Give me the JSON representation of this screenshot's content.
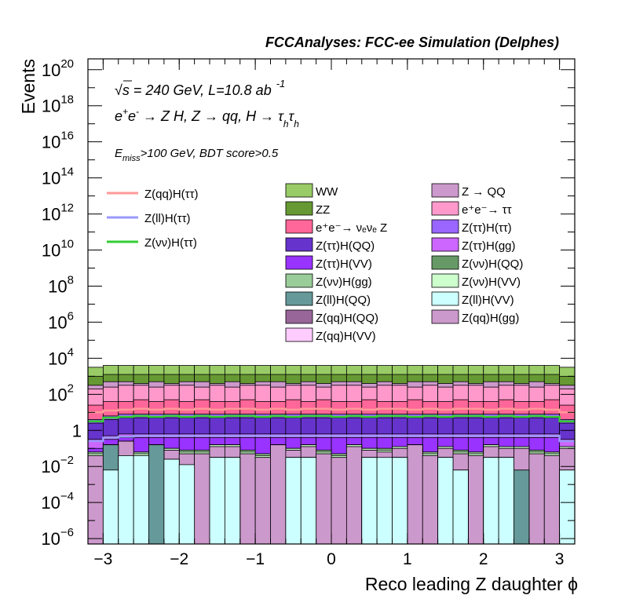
{
  "chart_data": {
    "type": "bar",
    "title": "FCCAnalyses: FCC-ee Simulation (Delphes)",
    "xlabel": "Reco leading Z daughter ϕ",
    "ylabel": "Events",
    "xlim": [
      -3.2,
      3.2
    ],
    "ylim_log10": [
      -6.3,
      20.6
    ],
    "log_y": true,
    "stacked": true,
    "annotations": [
      {
        "parts": [
          "√",
          "s",
          " = 240 GeV, L=10.8 ab",
          "-1"
        ]
      },
      {
        "parts": [
          "e",
          "+",
          "e",
          "-",
          " → Z H, Z  → qq, H  → τ",
          "h",
          "τ",
          "h"
        ]
      },
      {
        "parts": [
          "E",
          "miss",
          ">100 GeV, BDT score>0.5"
        ]
      }
    ],
    "x_ticks": [
      {
        "value": -3,
        "label": "−3"
      },
      {
        "value": -2,
        "label": "−2"
      },
      {
        "value": -1,
        "label": "−1"
      },
      {
        "value": 0,
        "label": "0"
      },
      {
        "value": 1,
        "label": "1"
      },
      {
        "value": 2,
        "label": "2"
      },
      {
        "value": 3,
        "label": "3"
      }
    ],
    "y_ticks": [
      {
        "exp": -6,
        "base": "10",
        "sup": "−6"
      },
      {
        "exp": -4,
        "base": "10",
        "sup": "−4"
      },
      {
        "exp": -2,
        "base": "10",
        "sup": "−2"
      },
      {
        "exp": 0,
        "base": "1",
        "sup": ""
      },
      {
        "exp": 2,
        "base": "10",
        "sup": "2"
      },
      {
        "exp": 4,
        "base": "10",
        "sup": "4"
      },
      {
        "exp": 6,
        "base": "10",
        "sup": "6"
      },
      {
        "exp": 8,
        "base": "10",
        "sup": "8"
      },
      {
        "exp": 10,
        "base": "10",
        "sup": "10"
      },
      {
        "exp": 12,
        "base": "10",
        "sup": "12"
      },
      {
        "exp": 14,
        "base": "10",
        "sup": "14"
      },
      {
        "exp": 16,
        "base": "10",
        "sup": "16"
      },
      {
        "exp": 18,
        "base": "10",
        "sup": "18"
      },
      {
        "exp": 20,
        "base": "10",
        "sup": "20"
      }
    ],
    "bin_edges": [
      -3.2,
      -3.0,
      -2.8,
      -2.6,
      -2.4,
      -2.2,
      -2.0,
      -1.8,
      -1.6,
      -1.4,
      -1.2,
      -1.0,
      -0.8,
      -0.6,
      -0.4,
      -0.2,
      0.0,
      0.2,
      0.4,
      0.6,
      0.8,
      1.0,
      1.2,
      1.4,
      1.6,
      1.8,
      2.0,
      2.2,
      2.4,
      2.6,
      2.8,
      3.0,
      3.2
    ],
    "stack_series": [
      {
        "name": "Z(ll)H(VV)",
        "color": "#ccffff",
        "log10_top": [
          -6.3,
          -2.2,
          -1.4,
          -1.4,
          -6.3,
          -1.6,
          -1.9,
          -6.3,
          -1.5,
          -1.5,
          -6.3,
          -6.3,
          -6.3,
          -1.5,
          -1.5,
          -6.3,
          -6.3,
          -6.3,
          -1.5,
          -1.5,
          -1.5,
          -6.3,
          -6.3,
          -1.5,
          -2.2,
          -6.3,
          -1.5,
          -1.5,
          -6.3,
          -6.3,
          -6.3,
          -2.2
        ]
      },
      {
        "name": "Z(ll)H(QQ)",
        "color": "#669999",
        "log10_top": [
          -6.3,
          -0.8,
          -1.4,
          -1.4,
          -0.8,
          -1.6,
          -1.9,
          -6.3,
          -1.5,
          -1.5,
          -6.3,
          -6.3,
          -6.3,
          -1.5,
          -1.5,
          -6.3,
          -6.3,
          -6.3,
          -1.5,
          -2.2,
          -1.5,
          -6.3,
          -6.3,
          -1.5,
          -2.2,
          -6.3,
          -1.5,
          -1.5,
          -2.2,
          -6.3,
          -6.3,
          -2.2
        ]
      },
      {
        "name": "Z(qq)H(VV)",
        "color": "#ffccff",
        "log10_top": [
          -6.3,
          -0.8,
          -1.4,
          -1.4,
          -0.8,
          -1.6,
          -1.9,
          -6.3,
          -1.5,
          -1.5,
          -6.3,
          -6.3,
          -6.3,
          -1.5,
          -1.5,
          -6.3,
          -6.3,
          -6.3,
          -1.5,
          -2.2,
          -1.5,
          -6.3,
          -6.3,
          -1.5,
          -2.2,
          -6.3,
          -1.5,
          -1.5,
          -2.2,
          -6.3,
          -6.3,
          -2.2
        ]
      },
      {
        "name": "Z(qq)H(gg)",
        "color": "#cc99cc",
        "log10_top": [
          -1.4,
          -0.8,
          -0.6,
          -1.4,
          -0.8,
          -1.1,
          -1.3,
          -1.3,
          -0.9,
          -0.9,
          -1.3,
          -1.5,
          -0.8,
          -1.1,
          -0.9,
          -1.3,
          -1.5,
          -0.9,
          -1.1,
          -1.2,
          -1.0,
          -0.8,
          -1.4,
          -1.0,
          -1.3,
          -1.4,
          -0.9,
          -1.0,
          -1.0,
          -1.3,
          -1.4,
          -1.0
        ]
      },
      {
        "name": "Z(qq)H(QQ)",
        "color": "#996699",
        "log10_top": [
          -1.4,
          -0.8,
          -0.6,
          -1.4,
          -0.8,
          -1.1,
          -1.3,
          -1.3,
          -0.9,
          -0.9,
          -1.3,
          -1.5,
          -0.8,
          -1.1,
          -0.9,
          -1.3,
          -1.5,
          -0.9,
          -1.1,
          -1.2,
          -1.0,
          -0.8,
          -1.4,
          -1.0,
          -1.3,
          -1.4,
          -0.9,
          -1.0,
          -1.0,
          -1.3,
          -1.4,
          -1.0
        ]
      },
      {
        "name": "Z(νν)H(VV)",
        "color": "#ccffcc",
        "log10_top": [
          -1.3,
          -0.8,
          -0.6,
          -1.3,
          -0.8,
          -1.0,
          -1.2,
          -1.2,
          -0.8,
          -0.8,
          -1.2,
          -1.4,
          -0.8,
          -1.0,
          -0.8,
          -1.2,
          -1.4,
          -0.8,
          -1.0,
          -1.1,
          -0.9,
          -0.8,
          -1.3,
          -0.9,
          -1.2,
          -1.3,
          -0.8,
          -0.9,
          -0.9,
          -1.2,
          -1.3,
          -0.9
        ]
      },
      {
        "name": "Z(νν)H(gg)",
        "color": "#99cc99",
        "log10_top": [
          -1.2,
          -0.8,
          -0.6,
          -1.2,
          -0.8,
          -1.0,
          -1.1,
          -1.1,
          -0.8,
          -0.8,
          -1.1,
          -1.3,
          -0.8,
          -1.0,
          -0.8,
          -1.1,
          -1.3,
          -0.8,
          -1.0,
          -1.0,
          -0.9,
          -0.8,
          -1.2,
          -0.9,
          -1.1,
          -1.2,
          -0.8,
          -0.9,
          -0.9,
          -1.1,
          -1.2,
          -0.9
        ]
      },
      {
        "name": "Z(νν)H(QQ)",
        "color": "#669966",
        "log10_top": [
          -1.2,
          -0.8,
          -0.6,
          -1.2,
          -0.8,
          -1.0,
          -1.1,
          -1.1,
          -0.8,
          -0.8,
          -1.1,
          -1.3,
          -0.8,
          -1.0,
          -0.8,
          -1.1,
          -1.3,
          -0.8,
          -1.0,
          -1.0,
          -0.9,
          -0.8,
          -1.2,
          -0.9,
          -1.1,
          -1.2,
          -0.8,
          -0.9,
          -0.9,
          -1.1,
          -1.2,
          -0.9
        ]
      },
      {
        "name": "Z(ττ)H(VV)",
        "color": "#9933ff",
        "log10_top": [
          -1.0,
          -0.5,
          -0.4,
          -0.4,
          -0.4,
          -0.4,
          -0.4,
          -0.4,
          -0.4,
          -0.4,
          -0.4,
          -0.4,
          -0.4,
          -0.4,
          -0.4,
          -0.4,
          -0.4,
          -0.4,
          -0.4,
          -0.4,
          -0.4,
          -0.4,
          -0.4,
          -0.4,
          -0.4,
          -0.4,
          -0.4,
          -0.4,
          -0.4,
          -0.4,
          -0.4,
          -1.0
        ]
      },
      {
        "name": "Z(ττ)H(gg)",
        "color": "#cc66ff",
        "log10_top": [
          -0.5,
          -0.3,
          -0.2,
          -0.2,
          -0.2,
          -0.2,
          -0.2,
          -0.2,
          -0.2,
          -0.2,
          -0.2,
          -0.2,
          -0.2,
          -0.2,
          -0.2,
          -0.2,
          -0.2,
          -0.2,
          -0.2,
          -0.2,
          -0.2,
          -0.2,
          -0.2,
          -0.2,
          -0.2,
          -0.2,
          -0.2,
          -0.2,
          -0.2,
          -0.2,
          -0.2,
          -0.5
        ]
      },
      {
        "name": "Z(ττ)H(QQ)",
        "color": "#6633cc",
        "log10_top": [
          0.4,
          0.6,
          0.7,
          0.7,
          0.7,
          0.7,
          0.7,
          0.7,
          0.7,
          0.7,
          0.7,
          0.7,
          0.7,
          0.7,
          0.7,
          0.7,
          0.7,
          0.7,
          0.7,
          0.7,
          0.7,
          0.7,
          0.7,
          0.7,
          0.7,
          0.7,
          0.7,
          0.7,
          0.7,
          0.7,
          0.7,
          0.4
        ]
      },
      {
        "name": "Z(ττ)H(ττ)",
        "color": "#9966ff",
        "log10_top": [
          0.6,
          0.8,
          0.9,
          0.9,
          0.9,
          0.9,
          0.9,
          0.9,
          0.9,
          0.9,
          0.9,
          0.9,
          0.9,
          0.9,
          0.9,
          0.9,
          0.9,
          0.9,
          0.9,
          0.9,
          0.9,
          0.9,
          0.9,
          0.9,
          0.9,
          0.9,
          0.9,
          0.9,
          0.9,
          0.9,
          0.9,
          0.6
        ]
      },
      {
        "name": "e⁺e⁻→ νₑνₑ Z",
        "color": "#ff6699",
        "log10_top": [
          1.4,
          1.6,
          1.6,
          1.7,
          1.6,
          1.7,
          1.6,
          1.7,
          1.6,
          1.6,
          1.7,
          1.6,
          1.6,
          1.7,
          1.6,
          1.7,
          1.6,
          1.6,
          1.7,
          1.6,
          1.6,
          1.7,
          1.6,
          1.6,
          1.7,
          1.6,
          1.6,
          1.7,
          1.6,
          1.6,
          1.7,
          1.4
        ]
      },
      {
        "name": "e⁺e⁻→ ττ",
        "color": "#ff99cc",
        "log10_top": [
          2.3,
          2.4,
          2.5,
          2.5,
          2.4,
          2.5,
          2.5,
          2.4,
          2.5,
          2.4,
          2.5,
          2.5,
          2.4,
          2.5,
          2.5,
          2.4,
          2.5,
          2.5,
          2.4,
          2.5,
          2.5,
          2.4,
          2.5,
          2.4,
          2.5,
          2.5,
          2.4,
          2.5,
          2.5,
          2.4,
          2.5,
          2.3
        ]
      },
      {
        "name": "Z → QQ",
        "color": "#cc99cc",
        "log10_top": [
          2.5,
          2.7,
          2.7,
          2.6,
          2.7,
          2.6,
          2.7,
          2.7,
          2.6,
          2.7,
          2.6,
          2.7,
          2.7,
          2.6,
          2.7,
          2.6,
          2.7,
          2.7,
          2.6,
          2.7,
          2.6,
          2.7,
          2.7,
          2.6,
          2.7,
          2.6,
          2.7,
          2.7,
          2.6,
          2.7,
          2.6,
          2.5
        ]
      },
      {
        "name": "ZZ",
        "color": "#669933",
        "log10_top": [
          3.0,
          3.1,
          3.1,
          3.1,
          3.1,
          3.1,
          3.1,
          3.1,
          3.1,
          3.1,
          3.1,
          3.1,
          3.1,
          3.1,
          3.1,
          3.1,
          3.1,
          3.1,
          3.1,
          3.1,
          3.1,
          3.1,
          3.1,
          3.1,
          3.1,
          3.1,
          3.1,
          3.1,
          3.1,
          3.1,
          3.1,
          3.0
        ]
      },
      {
        "name": "WW",
        "color": "#99cc66",
        "log10_top": [
          3.5,
          3.6,
          3.6,
          3.6,
          3.6,
          3.6,
          3.6,
          3.6,
          3.6,
          3.6,
          3.6,
          3.6,
          3.6,
          3.6,
          3.6,
          3.6,
          3.6,
          3.6,
          3.6,
          3.6,
          3.6,
          3.6,
          3.6,
          3.6,
          3.6,
          3.6,
          3.6,
          3.6,
          3.6,
          3.6,
          3.6,
          3.5
        ]
      }
    ],
    "line_series": [
      {
        "name": "Z(qq)H(ττ)",
        "color": "#ff9999",
        "log10": [
          1.0,
          1.1,
          1.15,
          1.2,
          1.15,
          1.2,
          1.15,
          1.2,
          1.15,
          1.2,
          1.2,
          1.15,
          1.2,
          1.15,
          1.2,
          1.2,
          1.15,
          1.2,
          1.15,
          1.2,
          1.2,
          1.15,
          1.2,
          1.15,
          1.2,
          1.2,
          1.15,
          1.2,
          1.15,
          1.2,
          1.15,
          1.0
        ]
      },
      {
        "name": "Z(ll)H(ττ)",
        "color": "#9999ff",
        "log10": [
          -0.6,
          -0.4,
          -0.35,
          -0.3,
          -0.3,
          -0.3,
          -0.3,
          -0.3,
          -0.3,
          -0.3,
          -0.3,
          -0.3,
          -0.3,
          -0.3,
          -0.3,
          -0.3,
          -0.3,
          -0.3,
          -0.3,
          -0.3,
          -0.3,
          -0.3,
          -0.3,
          -0.3,
          -0.3,
          -0.3,
          -0.3,
          -0.3,
          -0.3,
          -0.3,
          -0.3,
          -0.6
        ]
      },
      {
        "name": "Z(νν)H(ττ)",
        "color": "#33cc33",
        "log10": [
          0.5,
          0.7,
          0.75,
          0.8,
          0.75,
          0.8,
          0.75,
          0.8,
          0.75,
          0.8,
          0.8,
          0.75,
          0.8,
          0.75,
          0.8,
          0.8,
          0.75,
          0.8,
          0.75,
          0.8,
          0.8,
          0.75,
          0.8,
          0.75,
          0.8,
          0.8,
          0.75,
          0.8,
          0.75,
          0.8,
          0.75,
          0.5
        ]
      }
    ],
    "legend_left": [
      {
        "label": "Z(qq)H(ττ)",
        "color": "#ff9999"
      },
      {
        "label": "Z(ll)H(ττ)",
        "color": "#9999ff"
      },
      {
        "label": "Z(νν)H(ττ)",
        "color": "#33cc33"
      }
    ],
    "legend_col1": [
      {
        "label": "WW",
        "color": "#99cc66"
      },
      {
        "label": "ZZ",
        "color": "#669933"
      },
      {
        "label": "e⁺e⁻→ νₑνₑ Z",
        "color": "#ff6699"
      },
      {
        "label": "Z(ττ)H(QQ)",
        "color": "#6633cc"
      },
      {
        "label": "Z(ττ)H(VV)",
        "color": "#9933ff"
      },
      {
        "label": "Z(νν)H(gg)",
        "color": "#99cc99"
      },
      {
        "label": "Z(ll)H(QQ)",
        "color": "#669999"
      },
      {
        "label": "Z(qq)H(QQ)",
        "color": "#996699"
      },
      {
        "label": "Z(qq)H(VV)",
        "color": "#ffccff"
      }
    ],
    "legend_col2": [
      {
        "label": "Z → QQ",
        "color": "#cc99cc"
      },
      {
        "label": "e⁺e⁻→ ττ",
        "color": "#ff99cc"
      },
      {
        "label": "Z(ττ)H(ττ)",
        "color": "#9966ff"
      },
      {
        "label": "Z(ττ)H(gg)",
        "color": "#cc66ff"
      },
      {
        "label": "Z(νν)H(QQ)",
        "color": "#669966"
      },
      {
        "label": "Z(νν)H(VV)",
        "color": "#ccffcc"
      },
      {
        "label": "Z(ll)H(VV)",
        "color": "#ccffff"
      },
      {
        "label": "Z(qq)H(gg)",
        "color": "#cc99cc"
      }
    ]
  }
}
